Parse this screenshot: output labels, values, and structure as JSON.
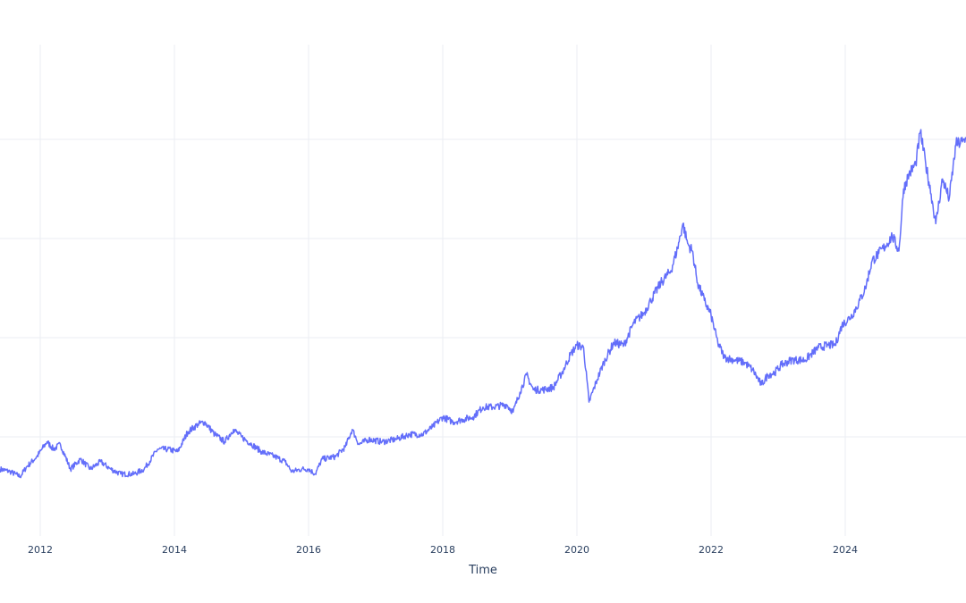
{
  "chart_data": {
    "type": "line",
    "title": "",
    "xlabel": "Time",
    "ylabel": "",
    "grid": true,
    "x_ticks": [
      2012,
      2014,
      2016,
      2018,
      2020,
      2022,
      2024
    ],
    "x_tick_labels": [
      "2012",
      "2014",
      "2016",
      "2018",
      "2020",
      "2022",
      "2024"
    ],
    "xlim": [
      2011.4,
      2025.8
    ],
    "ylim": [
      0,
      100
    ],
    "y_gridlines": [
      20,
      40,
      60,
      80
    ],
    "series": [
      {
        "color": "#636efa",
        "points": [
          [
            2011.4,
            13.5
          ],
          [
            2011.55,
            13.0
          ],
          [
            2011.7,
            12.0
          ],
          [
            2011.8,
            14.0
          ],
          [
            2011.95,
            16.0
          ],
          [
            2012.1,
            19.0
          ],
          [
            2012.2,
            17.5
          ],
          [
            2012.3,
            18.5
          ],
          [
            2012.45,
            13.5
          ],
          [
            2012.6,
            15.5
          ],
          [
            2012.75,
            13.5
          ],
          [
            2012.9,
            15.0
          ],
          [
            2013.05,
            13.5
          ],
          [
            2013.2,
            12.5
          ],
          [
            2013.4,
            12.5
          ],
          [
            2013.55,
            13.5
          ],
          [
            2013.75,
            17.5
          ],
          [
            2013.9,
            17.5
          ],
          [
            2014.05,
            17.0
          ],
          [
            2014.2,
            21.0
          ],
          [
            2014.35,
            22.5
          ],
          [
            2014.45,
            23.0
          ],
          [
            2014.6,
            20.5
          ],
          [
            2014.75,
            19.0
          ],
          [
            2014.88,
            21.5
          ],
          [
            2015.0,
            20.0
          ],
          [
            2015.15,
            18.5
          ],
          [
            2015.3,
            17.0
          ],
          [
            2015.5,
            16.0
          ],
          [
            2015.65,
            15.0
          ],
          [
            2015.75,
            13.0
          ],
          [
            2015.9,
            13.5
          ],
          [
            2016.0,
            13.5
          ],
          [
            2016.1,
            12.5
          ],
          [
            2016.2,
            15.5
          ],
          [
            2016.4,
            16.0
          ],
          [
            2016.55,
            18.0
          ],
          [
            2016.65,
            21.5
          ],
          [
            2016.75,
            18.5
          ],
          [
            2016.9,
            19.5
          ],
          [
            2017.1,
            19.0
          ],
          [
            2017.3,
            19.5
          ],
          [
            2017.5,
            20.5
          ],
          [
            2017.7,
            20.5
          ],
          [
            2017.85,
            22.0
          ],
          [
            2018.0,
            24.0
          ],
          [
            2018.15,
            23.0
          ],
          [
            2018.3,
            23.5
          ],
          [
            2018.45,
            24.0
          ],
          [
            2018.6,
            26.0
          ],
          [
            2018.75,
            26.0
          ],
          [
            2018.95,
            26.5
          ],
          [
            2019.05,
            25.0
          ],
          [
            2019.15,
            29.0
          ],
          [
            2019.25,
            32.5
          ],
          [
            2019.35,
            29.5
          ],
          [
            2019.5,
            29.5
          ],
          [
            2019.65,
            30.0
          ],
          [
            2019.8,
            33.5
          ],
          [
            2019.9,
            36.5
          ],
          [
            2020.0,
            38.5
          ],
          [
            2020.1,
            38.0
          ],
          [
            2020.18,
            27.0
          ],
          [
            2020.3,
            31.5
          ],
          [
            2020.4,
            35.0
          ],
          [
            2020.55,
            39.0
          ],
          [
            2020.7,
            38.5
          ],
          [
            2020.85,
            43.0
          ],
          [
            2021.0,
            45.0
          ],
          [
            2021.1,
            47.5
          ],
          [
            2021.25,
            51.0
          ],
          [
            2021.4,
            53.5
          ],
          [
            2021.5,
            58.0
          ],
          [
            2021.58,
            63.0
          ],
          [
            2021.65,
            59.0
          ],
          [
            2021.72,
            57.5
          ],
          [
            2021.8,
            51.0
          ],
          [
            2021.9,
            47.5
          ],
          [
            2022.0,
            44.5
          ],
          [
            2022.1,
            39.0
          ],
          [
            2022.2,
            36.0
          ],
          [
            2022.35,
            35.5
          ],
          [
            2022.5,
            35.0
          ],
          [
            2022.62,
            33.5
          ],
          [
            2022.75,
            30.5
          ],
          [
            2022.85,
            32.5
          ],
          [
            2022.95,
            33.0
          ],
          [
            2023.05,
            34.5
          ],
          [
            2023.2,
            35.5
          ],
          [
            2023.4,
            35.5
          ],
          [
            2023.6,
            38.0
          ],
          [
            2023.75,
            38.5
          ],
          [
            2023.85,
            38.5
          ],
          [
            2023.95,
            42.5
          ],
          [
            2024.1,
            44.5
          ],
          [
            2024.2,
            47.0
          ],
          [
            2024.3,
            50.0
          ],
          [
            2024.4,
            55.5
          ],
          [
            2024.5,
            57.0
          ],
          [
            2024.6,
            58.5
          ],
          [
            2024.7,
            60.5
          ],
          [
            2024.8,
            57.5
          ],
          [
            2024.87,
            70.0
          ],
          [
            2024.95,
            73.0
          ],
          [
            2025.05,
            75.0
          ],
          [
            2025.12,
            81.5
          ],
          [
            2025.2,
            75.0
          ],
          [
            2025.28,
            69.0
          ],
          [
            2025.35,
            63.0
          ],
          [
            2025.45,
            72.0
          ],
          [
            2025.55,
            68.0
          ],
          [
            2025.65,
            79.0
          ],
          [
            2025.75,
            79.5
          ],
          [
            2025.8,
            80.0
          ]
        ]
      }
    ]
  }
}
